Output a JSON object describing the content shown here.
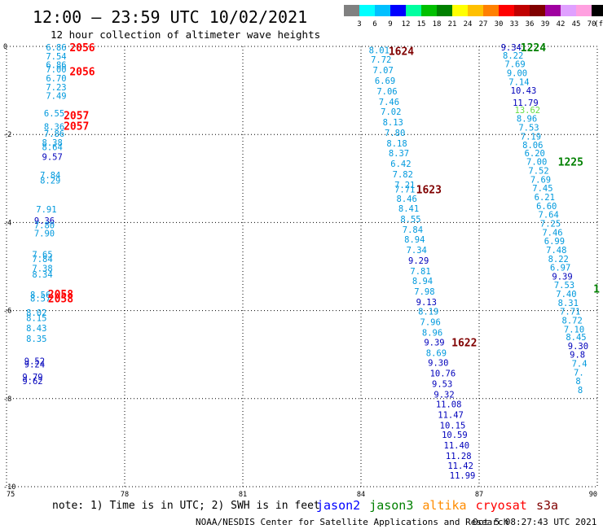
{
  "header": {
    "title": "12:00 – 23:59 UTC 10/02/2021",
    "subtitle": "12 hour collection of altimeter wave heights"
  },
  "scale": {
    "labels": [
      "3",
      "6",
      "9",
      "12",
      "15",
      "18",
      "21",
      "24",
      "27",
      "30",
      "33",
      "36",
      "39",
      "42",
      "45",
      "70"
    ],
    "unit": "(ft)",
    "colors": [
      "#808080",
      "#00ffff",
      "#00c0ff",
      "#0000ff",
      "#00ffa0",
      "#00c000",
      "#008000",
      "#ffff00",
      "#ffc000",
      "#ff8000",
      "#ff0000",
      "#c00000",
      "#800000",
      "#a000a0",
      "#e0a0ff",
      "#ffa0e0",
      "#000000"
    ]
  },
  "footer": {
    "note": "note:  1) Time is in UTC;  2) SWH is in feet",
    "credit": "NOAA/NESDIS Center for Satellite Applications and Research",
    "timestamp": "Oct  5 08:27:43 UTC 2021"
  },
  "legend": [
    {
      "name": "jason2",
      "color": "#0000ff"
    },
    {
      "name": "jason3",
      "color": "#008000"
    },
    {
      "name": "altika",
      "color": "#ff8c00"
    },
    {
      "name": "cryosat",
      "color": "#ff0000"
    },
    {
      "name": "s3a",
      "color": "#800000"
    }
  ],
  "chart_data": {
    "type": "scatter",
    "xlim": [
      75,
      90
    ],
    "ylim": [
      -10,
      0
    ],
    "xticks": [
      "75",
      "78",
      "81",
      "84",
      "87",
      "90"
    ],
    "yticks": [
      "0",
      "-2",
      "-4",
      "-6",
      "-8",
      "-10"
    ],
    "grid": true,
    "points": [
      {
        "x": 76.0,
        "y": -0.02,
        "v": "6.86",
        "c": "#0099dd"
      },
      {
        "x": 76.0,
        "y": -0.22,
        "v": "7.54",
        "c": "#0099dd"
      },
      {
        "x": 76.0,
        "y": -0.42,
        "v": "6.86",
        "c": "#0099dd"
      },
      {
        "x": 76.0,
        "y": -0.52,
        "v": "7.00",
        "c": "#0099dd"
      },
      {
        "x": 76.0,
        "y": -0.72,
        "v": "6.70",
        "c": "#0099dd"
      },
      {
        "x": 76.0,
        "y": -0.92,
        "v": "7.23",
        "c": "#0099dd"
      },
      {
        "x": 76.0,
        "y": -1.12,
        "v": "7.49",
        "c": "#0099dd"
      },
      {
        "x": 75.95,
        "y": -1.52,
        "v": "6.55",
        "c": "#0099dd"
      },
      {
        "x": 75.95,
        "y": -1.82,
        "v": "8.36",
        "c": "#0099dd"
      },
      {
        "x": 75.95,
        "y": -1.98,
        "v": "7.86",
        "c": "#0099dd"
      },
      {
        "x": 75.9,
        "y": -2.18,
        "v": "8.38",
        "c": "#0099dd"
      },
      {
        "x": 75.9,
        "y": -2.28,
        "v": "8.64",
        "c": "#0099dd"
      },
      {
        "x": 75.9,
        "y": -2.5,
        "v": "9.57",
        "c": "#0000bb"
      },
      {
        "x": 75.85,
        "y": -2.92,
        "v": "7.84",
        "c": "#0099dd"
      },
      {
        "x": 75.85,
        "y": -3.04,
        "v": "8.29",
        "c": "#0099dd"
      },
      {
        "x": 75.75,
        "y": -3.7,
        "v": "7.91",
        "c": "#0099dd"
      },
      {
        "x": 75.7,
        "y": -3.96,
        "v": "9.36",
        "c": "#0000bb"
      },
      {
        "x": 75.7,
        "y": -4.06,
        "v": "7.80",
        "c": "#0099dd"
      },
      {
        "x": 75.7,
        "y": -4.24,
        "v": "7.90",
        "c": "#0099dd"
      },
      {
        "x": 75.65,
        "y": -4.72,
        "v": "7.65",
        "c": "#0099dd"
      },
      {
        "x": 75.65,
        "y": -4.82,
        "v": "7.84",
        "c": "#0099dd"
      },
      {
        "x": 75.65,
        "y": -5.04,
        "v": "7.38",
        "c": "#0099dd"
      },
      {
        "x": 75.65,
        "y": -5.18,
        "v": "8.34",
        "c": "#0099dd"
      },
      {
        "x": 75.6,
        "y": -5.64,
        "v": "8.56",
        "c": "#0099dd"
      },
      {
        "x": 75.6,
        "y": -5.72,
        "v": "8.57",
        "c": "#0099dd"
      },
      {
        "x": 75.5,
        "y": -6.04,
        "v": "8.02",
        "c": "#0099dd"
      },
      {
        "x": 75.5,
        "y": -6.16,
        "v": "8.15",
        "c": "#0099dd"
      },
      {
        "x": 75.5,
        "y": -6.4,
        "v": "8.43",
        "c": "#0099dd"
      },
      {
        "x": 75.5,
        "y": -6.64,
        "v": "8.35",
        "c": "#0099dd"
      },
      {
        "x": 75.45,
        "y": -7.14,
        "v": "9.52",
        "c": "#0000bb"
      },
      {
        "x": 75.45,
        "y": -7.22,
        "v": "9.24",
        "c": "#0000bb"
      },
      {
        "x": 75.4,
        "y": -7.5,
        "v": "9.79",
        "c": "#0000bb"
      },
      {
        "x": 75.4,
        "y": -7.6,
        "v": "9.62",
        "c": "#0000bb"
      },
      {
        "x": 84.2,
        "y": -0.08,
        "v": "8.01",
        "c": "#0099dd"
      },
      {
        "x": 84.25,
        "y": -0.3,
        "v": "7.72",
        "c": "#0099dd"
      },
      {
        "x": 84.3,
        "y": -0.54,
        "v": "7.07",
        "c": "#0099dd"
      },
      {
        "x": 84.35,
        "y": -0.78,
        "v": "6.69",
        "c": "#0099dd"
      },
      {
        "x": 84.4,
        "y": -1.02,
        "v": "7.06",
        "c": "#0099dd"
      },
      {
        "x": 84.45,
        "y": -1.26,
        "v": "7.46",
        "c": "#0099dd"
      },
      {
        "x": 84.5,
        "y": -1.48,
        "v": "7.02",
        "c": "#0099dd"
      },
      {
        "x": 84.55,
        "y": -1.72,
        "v": "8.13",
        "c": "#0099dd"
      },
      {
        "x": 84.6,
        "y": -1.96,
        "v": "7.80",
        "c": "#0099dd"
      },
      {
        "x": 84.65,
        "y": -2.2,
        "v": "8.18",
        "c": "#0099dd"
      },
      {
        "x": 84.7,
        "y": -2.42,
        "v": "8.37",
        "c": "#0099dd"
      },
      {
        "x": 84.75,
        "y": -2.66,
        "v": "6.42",
        "c": "#0099dd"
      },
      {
        "x": 84.8,
        "y": -2.9,
        "v": "7.82",
        "c": "#0099dd"
      },
      {
        "x": 84.85,
        "y": -3.14,
        "v": "7.21",
        "c": "#0099dd"
      },
      {
        "x": 84.85,
        "y": -3.24,
        "v": "7.71",
        "c": "#0099dd"
      },
      {
        "x": 84.9,
        "y": -3.46,
        "v": "8.46",
        "c": "#0099dd"
      },
      {
        "x": 84.95,
        "y": -3.68,
        "v": "8.41",
        "c": "#0099dd"
      },
      {
        "x": 85.0,
        "y": -3.92,
        "v": "8.55",
        "c": "#0099dd"
      },
      {
        "x": 85.05,
        "y": -4.16,
        "v": "7.84",
        "c": "#0099dd"
      },
      {
        "x": 85.1,
        "y": -4.38,
        "v": "8.94",
        "c": "#0099dd"
      },
      {
        "x": 85.15,
        "y": -4.62,
        "v": "7.34",
        "c": "#0099dd"
      },
      {
        "x": 85.2,
        "y": -4.86,
        "v": "9.29",
        "c": "#0000bb"
      },
      {
        "x": 85.25,
        "y": -5.1,
        "v": "7.81",
        "c": "#0099dd"
      },
      {
        "x": 85.3,
        "y": -5.32,
        "v": "8.94",
        "c": "#0099dd"
      },
      {
        "x": 85.35,
        "y": -5.56,
        "v": "7.98",
        "c": "#0099dd"
      },
      {
        "x": 85.4,
        "y": -5.8,
        "v": "9.13",
        "c": "#0000bb"
      },
      {
        "x": 85.45,
        "y": -6.02,
        "v": "8.19",
        "c": "#0099dd"
      },
      {
        "x": 85.5,
        "y": -6.26,
        "v": "7.96",
        "c": "#0099dd"
      },
      {
        "x": 85.55,
        "y": -6.5,
        "v": "8.96",
        "c": "#0099dd"
      },
      {
        "x": 85.6,
        "y": -6.72,
        "v": "9.39",
        "c": "#0000bb"
      },
      {
        "x": 85.65,
        "y": -6.96,
        "v": "8.69",
        "c": "#0099dd"
      },
      {
        "x": 85.7,
        "y": -7.18,
        "v": "9.30",
        "c": "#0000bb"
      },
      {
        "x": 85.75,
        "y": -7.42,
        "v": "10.76",
        "c": "#0000bb"
      },
      {
        "x": 85.8,
        "y": -7.66,
        "v": "9.53",
        "c": "#0000bb"
      },
      {
        "x": 85.85,
        "y": -7.9,
        "v": "9.32",
        "c": "#0000bb"
      },
      {
        "x": 85.9,
        "y": -8.12,
        "v": "11.08",
        "c": "#0000bb"
      },
      {
        "x": 85.95,
        "y": -8.36,
        "v": "11.47",
        "c": "#0000bb"
      },
      {
        "x": 86.0,
        "y": -8.6,
        "v": "10.15",
        "c": "#0000bb"
      },
      {
        "x": 86.05,
        "y": -8.82,
        "v": "10.59",
        "c": "#0000bb"
      },
      {
        "x": 86.1,
        "y": -9.06,
        "v": "11.40",
        "c": "#0000bb"
      },
      {
        "x": 86.15,
        "y": -9.3,
        "v": "11.28",
        "c": "#0000bb"
      },
      {
        "x": 86.2,
        "y": -9.52,
        "v": "11.42",
        "c": "#0000bb"
      },
      {
        "x": 86.25,
        "y": -9.74,
        "v": "11.99",
        "c": "#0000bb"
      },
      {
        "x": 87.55,
        "y": -0.02,
        "v": "9.34",
        "c": "#0000bb"
      },
      {
        "x": 87.6,
        "y": -0.2,
        "v": "8.22",
        "c": "#0099dd"
      },
      {
        "x": 87.65,
        "y": -0.4,
        "v": "7.69",
        "c": "#0099dd"
      },
      {
        "x": 87.7,
        "y": -0.6,
        "v": "9.00",
        "c": "#0099dd"
      },
      {
        "x": 87.75,
        "y": -0.8,
        "v": "7.14",
        "c": "#0099dd"
      },
      {
        "x": 87.8,
        "y": -1.0,
        "v": "10.43",
        "c": "#0000bb"
      },
      {
        "x": 87.85,
        "y": -1.28,
        "v": "11.79",
        "c": "#0000bb"
      },
      {
        "x": 87.9,
        "y": -1.44,
        "v": "13.62",
        "c": "#66dd44"
      },
      {
        "x": 87.95,
        "y": -1.64,
        "v": "8.96",
        "c": "#0099dd"
      },
      {
        "x": 88.0,
        "y": -1.84,
        "v": "7.53",
        "c": "#0099dd"
      },
      {
        "x": 88.05,
        "y": -2.04,
        "v": "7.19",
        "c": "#0099dd"
      },
      {
        "x": 88.1,
        "y": -2.24,
        "v": "8.06",
        "c": "#0099dd"
      },
      {
        "x": 88.15,
        "y": -2.42,
        "v": "6.20",
        "c": "#0099dd"
      },
      {
        "x": 88.2,
        "y": -2.62,
        "v": "7.00",
        "c": "#0099dd"
      },
      {
        "x": 88.25,
        "y": -2.82,
        "v": "7.52",
        "c": "#0099dd"
      },
      {
        "x": 88.3,
        "y": -3.02,
        "v": "7.69",
        "c": "#0099dd"
      },
      {
        "x": 88.35,
        "y": -3.22,
        "v": "7.45",
        "c": "#0099dd"
      },
      {
        "x": 88.4,
        "y": -3.42,
        "v": "6.21",
        "c": "#0099dd"
      },
      {
        "x": 88.45,
        "y": -3.62,
        "v": "6.60",
        "c": "#0099dd"
      },
      {
        "x": 88.5,
        "y": -3.82,
        "v": "7.64",
        "c": "#0099dd"
      },
      {
        "x": 88.55,
        "y": -4.02,
        "v": "7.25",
        "c": "#0099dd"
      },
      {
        "x": 88.6,
        "y": -4.22,
        "v": "7.46",
        "c": "#0099dd"
      },
      {
        "x": 88.65,
        "y": -4.42,
        "v": "6.99",
        "c": "#0099dd"
      },
      {
        "x": 88.7,
        "y": -4.62,
        "v": "7.48",
        "c": "#0099dd"
      },
      {
        "x": 88.75,
        "y": -4.82,
        "v": "8.22",
        "c": "#0099dd"
      },
      {
        "x": 88.8,
        "y": -5.02,
        "v": "6.97",
        "c": "#0099dd"
      },
      {
        "x": 88.85,
        "y": -5.22,
        "v": "9.39",
        "c": "#0000bb"
      },
      {
        "x": 88.9,
        "y": -5.42,
        "v": "7.53",
        "c": "#0099dd"
      },
      {
        "x": 88.95,
        "y": -5.62,
        "v": "7.40",
        "c": "#0099dd"
      },
      {
        "x": 89.0,
        "y": -5.82,
        "v": "8.31",
        "c": "#0099dd"
      },
      {
        "x": 89.05,
        "y": -6.02,
        "v": "7.71",
        "c": "#0099dd"
      },
      {
        "x": 89.1,
        "y": -6.22,
        "v": "8.72",
        "c": "#0099dd"
      },
      {
        "x": 89.15,
        "y": -6.42,
        "v": "7.10",
        "c": "#0099dd"
      },
      {
        "x": 89.2,
        "y": -6.6,
        "v": "8.45",
        "c": "#0099dd"
      },
      {
        "x": 89.25,
        "y": -6.8,
        "v": "9.30",
        "c": "#0000bb"
      },
      {
        "x": 89.3,
        "y": -7.0,
        "v": "9.8",
        "c": "#0000bb"
      },
      {
        "x": 89.35,
        "y": -7.2,
        "v": "7.4",
        "c": "#0099dd"
      },
      {
        "x": 89.4,
        "y": -7.4,
        "v": "7.",
        "c": "#0099dd"
      },
      {
        "x": 89.45,
        "y": -7.6,
        "v": "8",
        "c": "#0099dd"
      },
      {
        "x": 89.5,
        "y": -7.8,
        "v": "8",
        "c": "#0099dd"
      }
    ],
    "times": [
      {
        "x": 76.6,
        "y": -0.02,
        "v": "2056",
        "c": "#ff0000"
      },
      {
        "x": 76.6,
        "y": -0.56,
        "v": "2056",
        "c": "#ff0000"
      },
      {
        "x": 76.45,
        "y": -1.56,
        "v": "2057",
        "c": "#ff0000"
      },
      {
        "x": 76.45,
        "y": -1.8,
        "v": "2057",
        "c": "#ff0000"
      },
      {
        "x": 76.05,
        "y": -5.62,
        "v": "2058",
        "c": "#ff0000"
      },
      {
        "x": 76.05,
        "y": -5.72,
        "v": "2058",
        "c": "#ff0000"
      },
      {
        "x": 84.7,
        "y": -0.1,
        "v": "1624",
        "c": "#800000"
      },
      {
        "x": 85.4,
        "y": -3.24,
        "v": "1623",
        "c": "#800000"
      },
      {
        "x": 86.3,
        "y": -6.72,
        "v": "1622",
        "c": "#800000"
      },
      {
        "x": 88.05,
        "y": -0.02,
        "v": "1224",
        "c": "#008000"
      },
      {
        "x": 89.0,
        "y": -2.62,
        "v": "1225",
        "c": "#008000"
      },
      {
        "x": 89.9,
        "y": -5.5,
        "v": "1",
        "c": "#008000"
      }
    ]
  }
}
